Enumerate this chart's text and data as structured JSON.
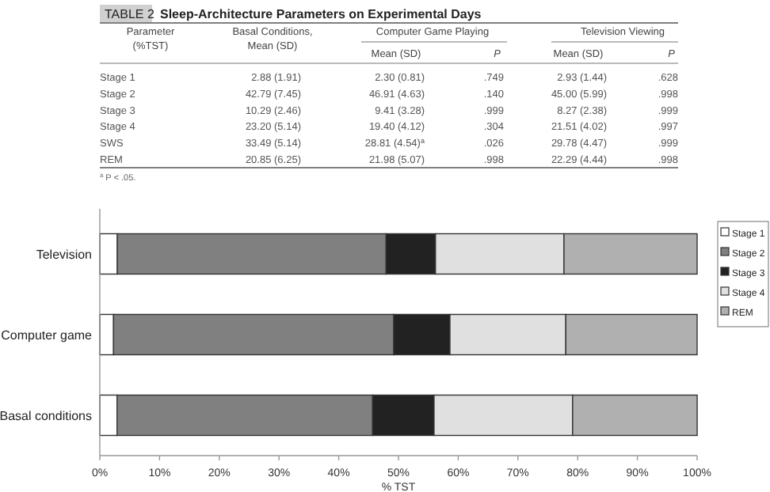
{
  "chart_data": [
    {
      "type": "other",
      "subtitle": "TABLE 2",
      "title": "Sleep-Architecture Parameters on Experimental Days",
      "ylabel": "Parameter (%TST)",
      "categories": [
        "Basal Conditions, Mean (SD)",
        "Mean (SD)",
        "P",
        "Mean (SD)",
        "P"
      ],
      "y_categories": [
        "Stage 1",
        "Stage 2",
        "Stage 3",
        "Stage 4",
        "SWS",
        "REM"
      ],
      "cell_labels": [
        [
          "2.88 (1.91)",
          "2.30 (0.81)",
          ".749",
          "2.93 (1.44)",
          ".628"
        ],
        [
          "42.79 (7.45)",
          "46.91 (4.63)",
          ".140",
          "45.00 (5.99)",
          ".998"
        ],
        [
          "10.29 (2.46)",
          "9.41 (3.28)",
          ".999",
          "8.27 (2.38)",
          ".999"
        ],
        [
          "23.20 (5.14)",
          "19.40 (4.12)",
          ".304",
          "21.51 (4.02)",
          ".997"
        ],
        [
          "33.49 (5.14)",
          "28.81 (4.54)$^{a}$",
          ".026",
          "29.78 (4.47)",
          ".999"
        ],
        [
          "20.85 (6.25)",
          "21.98 (5.07)",
          ".998",
          "22.29 (4.44)",
          ".998"
        ]
      ],
      "annotations": [
        "Computer Game Playing",
        "Television Viewing",
        "$^{a}$ P < .05."
      ]
    },
    {
      "type": "bar",
      "orientation": "horizontal",
      "stacked": true,
      "xlabel": "% TST",
      "categories": [
        "Television",
        "Computer game",
        "Basal conditions"
      ],
      "series": [
        {
          "name": "Stage 1",
          "color": "#ffffff",
          "values": [
            2.93,
            2.3,
            2.88
          ]
        },
        {
          "name": "Stage 2",
          "color": "#808080",
          "values": [
            45.0,
            46.91,
            42.79
          ]
        },
        {
          "name": "Stage 3",
          "color": "#222222",
          "values": [
            8.27,
            9.41,
            10.29
          ]
        },
        {
          "name": "Stage 4",
          "color": "#e0e0e0",
          "values": [
            21.51,
            19.4,
            23.2
          ]
        },
        {
          "name": "REM",
          "color": "#b0b0b0",
          "values": [
            22.29,
            21.98,
            20.85
          ]
        }
      ],
      "xlim": [
        0,
        100
      ],
      "xticks": [
        {
          "value": 0,
          "label": "0%"
        },
        {
          "value": 10,
          "label": "10%"
        },
        {
          "value": 20,
          "label": "20%"
        },
        {
          "value": 30,
          "label": "30%"
        },
        {
          "value": 40,
          "label": "40%"
        },
        {
          "value": 50,
          "label": "50%"
        },
        {
          "value": 60,
          "label": "60%"
        },
        {
          "value": 70,
          "label": "70%"
        },
        {
          "value": 80,
          "label": "80%"
        },
        {
          "value": 90,
          "label": "90%"
        },
        {
          "value": 100,
          "label": "100%"
        }
      ],
      "legend": "right"
    }
  ]
}
